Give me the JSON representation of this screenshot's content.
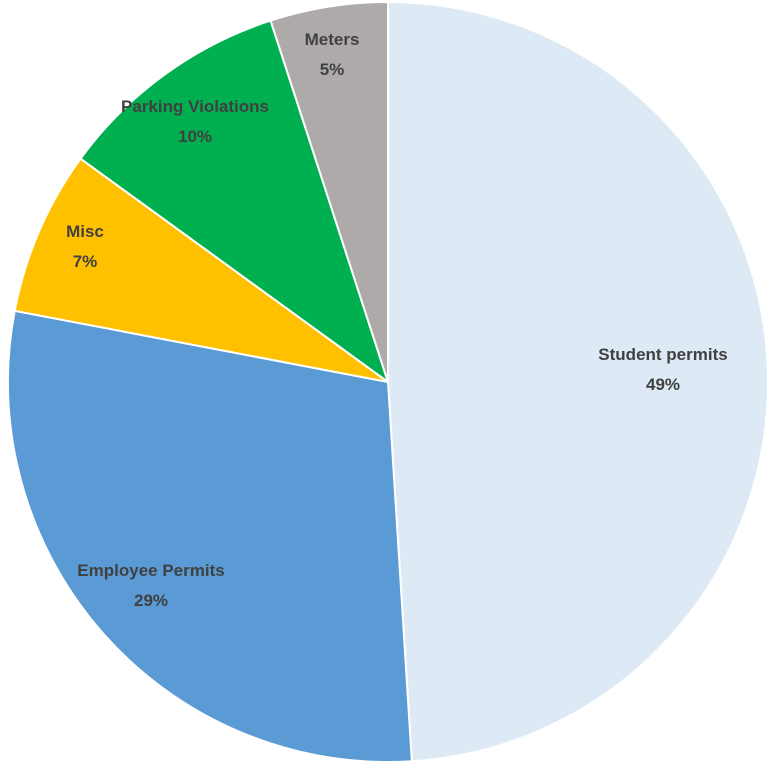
{
  "chart_data": {
    "type": "pie",
    "title": "",
    "slices": [
      {
        "label": "Student permits",
        "value": 49,
        "value_label": "49%",
        "color": "#dde9f5"
      },
      {
        "label": "Employee Permits",
        "value": 29,
        "value_label": "29%",
        "color": "#5b9bd5"
      },
      {
        "label": "Misc",
        "value": 7,
        "value_label": "7%",
        "color": "#ffc000"
      },
      {
        "label": "Parking Violations",
        "value": 10,
        "value_label": "10%",
        "color": "#00b050"
      },
      {
        "label": "Meters",
        "value": 5,
        "value_label": "5%",
        "color": "#aeaaaa"
      }
    ],
    "start_angle": "12 o'clock",
    "direction": "clockwise",
    "legend": "none"
  }
}
